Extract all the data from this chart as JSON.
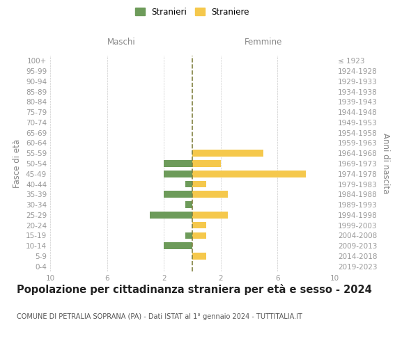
{
  "age_groups": [
    "100+",
    "95-99",
    "90-94",
    "85-89",
    "80-84",
    "75-79",
    "70-74",
    "65-69",
    "60-64",
    "55-59",
    "50-54",
    "45-49",
    "40-44",
    "35-39",
    "30-34",
    "25-29",
    "20-24",
    "15-19",
    "10-14",
    "5-9",
    "0-4"
  ],
  "birth_years": [
    "≤ 1923",
    "1924-1928",
    "1929-1933",
    "1934-1938",
    "1939-1943",
    "1944-1948",
    "1949-1953",
    "1954-1958",
    "1959-1963",
    "1964-1968",
    "1969-1973",
    "1974-1978",
    "1979-1983",
    "1984-1988",
    "1989-1993",
    "1994-1998",
    "1999-2003",
    "2004-2008",
    "2009-2013",
    "2014-2018",
    "2019-2023"
  ],
  "maschi": [
    0,
    0,
    0,
    0,
    0,
    0,
    0,
    0,
    0,
    0,
    2,
    2,
    0.5,
    2,
    0.5,
    3,
    0,
    0.5,
    2,
    0,
    0
  ],
  "femmine": [
    0,
    0,
    0,
    0,
    0,
    0,
    0,
    0,
    0,
    5,
    2,
    8,
    1,
    2.5,
    0,
    2.5,
    1,
    1,
    0,
    1,
    0
  ],
  "color_maschi": "#6d9b5a",
  "color_femmine": "#f5c84c",
  "xlim": 10,
  "title": "Popolazione per cittadinanza straniera per età e sesso - 2024",
  "subtitle": "COMUNE DI PETRALIA SOPRANA (PA) - Dati ISTAT al 1° gennaio 2024 - TUTTITALIA.IT",
  "ylabel_left": "Fasce di età",
  "ylabel_right": "Anni di nascita",
  "legend_stranieri": "Stranieri",
  "legend_straniere": "Straniere",
  "maschi_label": "Maschi",
  "femmine_label": "Femmine",
  "bg_color": "#ffffff",
  "grid_color": "#cccccc",
  "axis_label_color": "#888888",
  "tick_label_color": "#999999",
  "center_line_color": "#808040",
  "title_fontsize": 10.5,
  "subtitle_fontsize": 7.0,
  "tick_fontsize": 7.5,
  "label_fontsize": 8.5
}
